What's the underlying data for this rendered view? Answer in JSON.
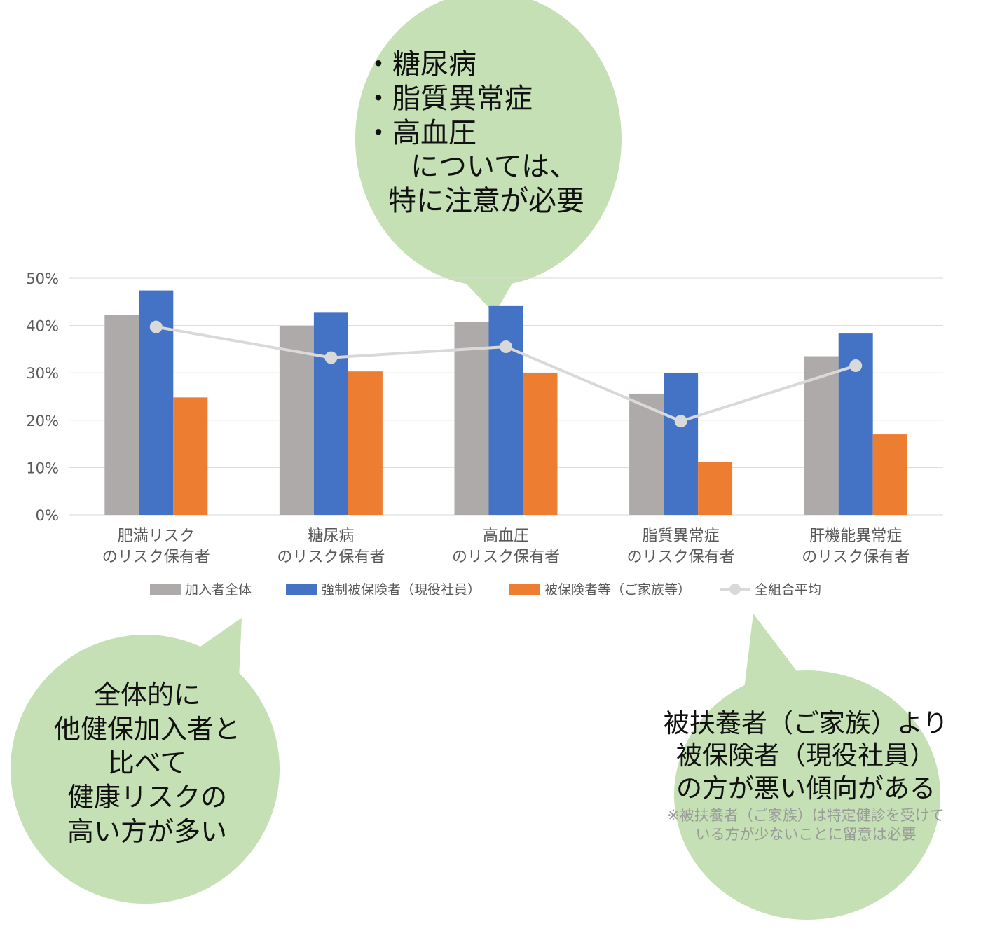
{
  "chart_data": {
    "type": "bar",
    "categories": [
      [
        "肥満リスク",
        "のリスク保有者"
      ],
      [
        "糖尿病",
        "のリスク保有者"
      ],
      [
        "高血圧",
        "のリスク保有者"
      ],
      [
        "脂質異常症",
        "のリスク保有者"
      ],
      [
        "肝機能異常症",
        "のリスク保有者"
      ]
    ],
    "series": [
      {
        "name": "加入者全体",
        "type": "bar",
        "color": "#aeaaaa",
        "values": [
          42.2,
          39.8,
          40.8,
          25.6,
          33.5
        ]
      },
      {
        "name": "強制被保険者（現役社員）",
        "type": "bar",
        "color": "#4472c4",
        "values": [
          47.4,
          42.7,
          44.1,
          30.0,
          38.3
        ]
      },
      {
        "name": "被保険者等（ご家族等）",
        "type": "bar",
        "color": "#ed7d31",
        "values": [
          24.8,
          30.3,
          30.0,
          11.1,
          17.0
        ]
      },
      {
        "name": "全組合平均",
        "type": "line",
        "color": "#d9d9d9",
        "values": [
          39.7,
          33.2,
          35.5,
          19.8,
          31.5
        ]
      }
    ],
    "ylim": [
      0,
      50
    ],
    "yticks": [
      "0%",
      "10%",
      "20%",
      "30%",
      "40%",
      "50%"
    ],
    "grid": true,
    "legend_position": "bottom"
  },
  "callouts": {
    "top": {
      "lines": [
        "・糖尿病",
        "・脂質異常症",
        "・高血圧"
      ],
      "line4": "については、",
      "line5": "特に注意が必要",
      "color": "#c5e0b4"
    },
    "left": {
      "lines": [
        "全体的に",
        "他健保加入者と",
        "比べて",
        "健康リスクの",
        "高い方が多い"
      ],
      "color": "#c5e0b4"
    },
    "right": {
      "lines": [
        "被扶養者（ご家族）より",
        "被保険者（現役社員）",
        "の方が悪い傾向がある"
      ],
      "note1": "※被扶養者（ご家族）は特定健診を受けて",
      "note2": "いる方が少ないことに留意は必要",
      "color": "#c5e0b4"
    }
  }
}
